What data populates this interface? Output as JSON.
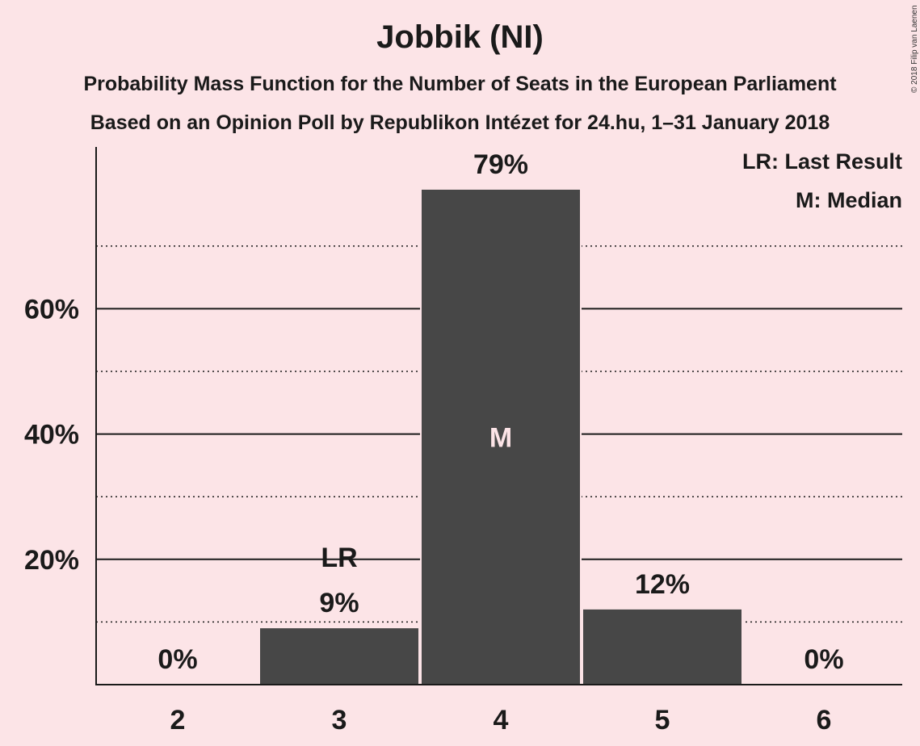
{
  "title": "Jobbik (NI)",
  "subtitle1": "Probability Mass Function for the Number of Seats in the European Parliament",
  "subtitle2": "Based on an Opinion Poll by Republikon Intézet for 24.hu, 1–31 January 2018",
  "copyright": "© 2018 Filip van Laenen",
  "legend": {
    "last_result": "LR: Last Result",
    "median": "M: Median"
  },
  "colors": {
    "background": "#fce4e7",
    "bar": "#474747",
    "text": "#1a1a1a"
  },
  "chart_data": {
    "type": "bar",
    "categories": [
      "2",
      "3",
      "4",
      "5",
      "6"
    ],
    "values": [
      0,
      9,
      79,
      12,
      0
    ],
    "value_labels": [
      "0%",
      "9%",
      "79%",
      "12%",
      "0%"
    ],
    "ylim": [
      0,
      85
    ],
    "y_ticks": [
      20,
      40,
      60
    ],
    "y_tick_labels": [
      "20%",
      "40%",
      "60%"
    ],
    "y_minor_gridlines": [
      10,
      30,
      50,
      70
    ],
    "grid": true,
    "legend_placement": "top-right",
    "markers": [
      {
        "category": "3",
        "label": "LR"
      },
      {
        "category": "4",
        "label": "M"
      }
    ]
  }
}
